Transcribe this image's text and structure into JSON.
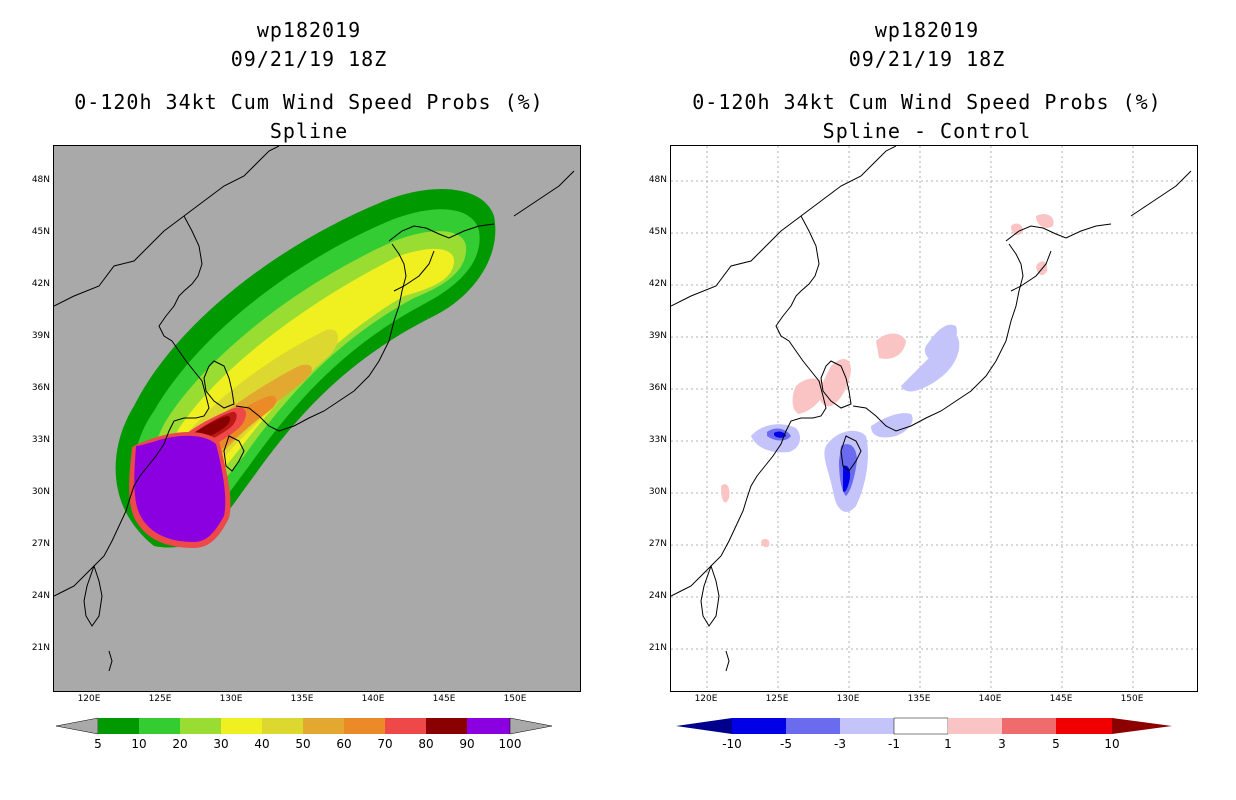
{
  "left_panel": {
    "storm_id": "wp182019",
    "datetime": "09/21/19 18Z",
    "product_title": "0-120h 34kt Cum Wind Speed Probs (%)",
    "subtitle": "Spline",
    "colorbar": {
      "labels": [
        "5",
        "10",
        "20",
        "30",
        "40",
        "50",
        "60",
        "70",
        "80",
        "90",
        "100"
      ],
      "colors": [
        "#009a00",
        "#33cc33",
        "#99dd33",
        "#f0f020",
        "#dcd830",
        "#e2a830",
        "#ec8a28",
        "#ef4848",
        "#bb1818",
        "#8a0000",
        "#8b00e0"
      ]
    }
  },
  "right_panel": {
    "storm_id": "wp182019",
    "datetime": "09/21/19 18Z",
    "product_title": "0-120h 34kt Cum Wind Speed Probs (%)",
    "subtitle": "Spline - Control",
    "colorbar": {
      "labels": [
        "-10",
        "-5",
        "-3",
        "-1",
        "1",
        "3",
        "5",
        "10"
      ],
      "colors": [
        "#00008c",
        "#0000e6",
        "#6b6bf0",
        "#c4c4fa",
        "#ffffff",
        "#fac4c4",
        "#f06b6b",
        "#f00000",
        "#8c0000"
      ]
    }
  },
  "axes": {
    "lat_labels": [
      "48N",
      "45N",
      "42N",
      "39N",
      "36N",
      "33N",
      "30N",
      "27N",
      "24N",
      "21N"
    ],
    "lon_labels": [
      "120E",
      "125E",
      "130E",
      "135E",
      "140E",
      "145E",
      "150E"
    ]
  },
  "map_extent": {
    "lon_min": 117.5,
    "lon_max": 154.5,
    "lat_min": 18.5,
    "lat_max": 49.5
  }
}
